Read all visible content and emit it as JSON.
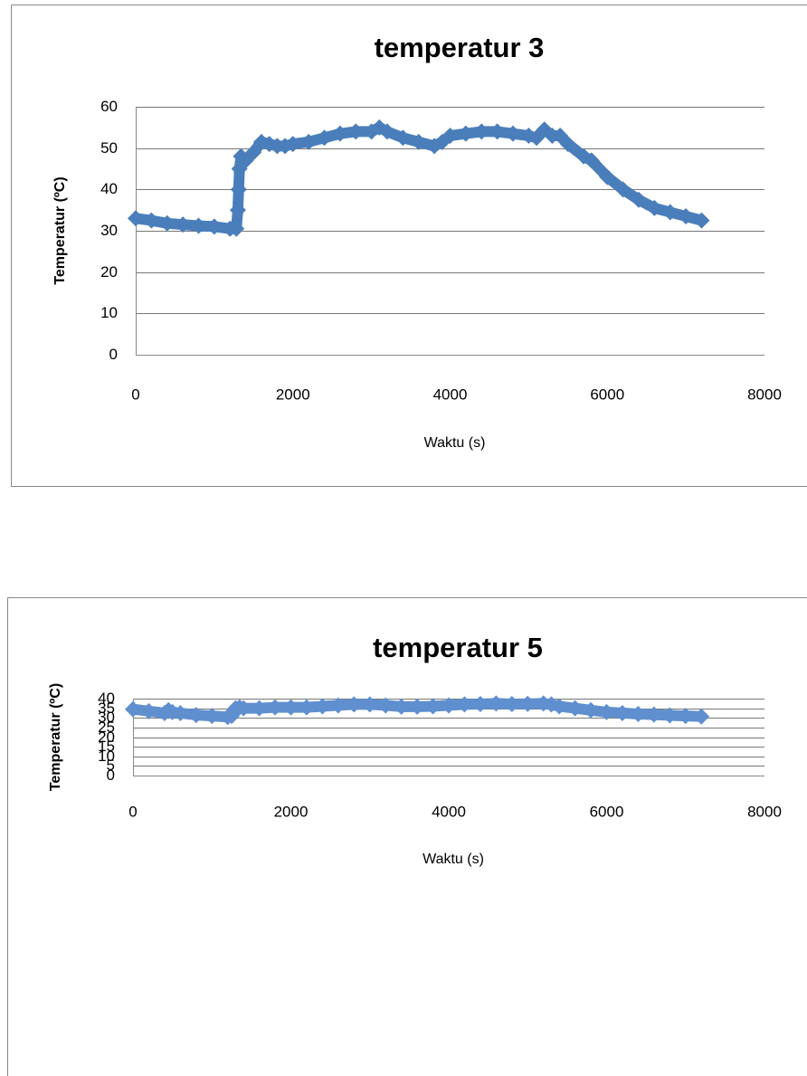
{
  "chart_data": [
    {
      "type": "scatter",
      "title": "temperatur 3",
      "xlabel": "Waktu (s)",
      "ylabel": "Temperatur (ºC)",
      "color": "#4a7ebb",
      "grid": true,
      "x": [
        0,
        200,
        400,
        600,
        800,
        1000,
        1200,
        1280,
        1300,
        1310,
        1320,
        1340,
        1400,
        1500,
        1600,
        1700,
        1800,
        1900,
        2000,
        2200,
        2400,
        2600,
        2800,
        3000,
        3100,
        3200,
        3400,
        3600,
        3800,
        3900,
        4000,
        4200,
        4400,
        4600,
        4800,
        5000,
        5100,
        5200,
        5300,
        5400,
        5500,
        5700,
        5800,
        6000,
        6200,
        6400,
        6600,
        6800,
        7000,
        7200
      ],
      "values": [
        33,
        32.5,
        31.8,
        31.5,
        31.2,
        31,
        30.5,
        30.5,
        35,
        40,
        45,
        48,
        47,
        49,
        51.5,
        51,
        50.5,
        50.5,
        51,
        51.5,
        52.5,
        53.5,
        54,
        54,
        55,
        54,
        52.5,
        51.5,
        50.5,
        51.5,
        53,
        53.5,
        54,
        54,
        53.5,
        53,
        52.5,
        54.5,
        53,
        53,
        51,
        48,
        47,
        43,
        40,
        37.5,
        35.5,
        34.5,
        33.5,
        32.5
      ],
      "xlim": [
        0,
        8000
      ],
      "xticks": [
        0,
        2000,
        4000,
        6000,
        8000
      ],
      "ylim": [
        0,
        60
      ],
      "yticks": [
        0,
        10,
        20,
        30,
        40,
        50,
        60
      ]
    },
    {
      "type": "scatter",
      "title": "temperatur 5",
      "xlabel": "Waktu (s)",
      "ylabel": "Temperatur (ºC)",
      "color": "#5f8fcf",
      "grid": true,
      "x": [
        0,
        200,
        400,
        450,
        500,
        600,
        800,
        1000,
        1200,
        1250,
        1300,
        1350,
        1400,
        1600,
        1800,
        2000,
        2200,
        2400,
        2600,
        2800,
        3000,
        3200,
        3400,
        3600,
        3800,
        4000,
        4200,
        4400,
        4600,
        4800,
        5000,
        5200,
        5300,
        5400,
        5600,
        5800,
        6000,
        6200,
        6400,
        6600,
        6800,
        7000,
        7200
      ],
      "values": [
        34.5,
        33.5,
        32.5,
        34,
        33,
        32.5,
        31.5,
        31,
        30.5,
        31,
        35,
        35.5,
        35,
        35,
        35.5,
        35.5,
        35.5,
        36,
        36.5,
        37,
        37,
        36.5,
        35.8,
        35.8,
        36,
        36.5,
        37,
        37.2,
        37.5,
        37.2,
        37.3,
        37.5,
        37,
        36,
        35,
        34,
        33,
        32.5,
        32,
        31.7,
        31.3,
        31,
        30.7
      ],
      "xlim": [
        0,
        8000
      ],
      "xticks": [
        0,
        2000,
        4000,
        6000,
        8000
      ],
      "ylim": [
        0,
        40
      ],
      "yticks": [
        0,
        5,
        10,
        15,
        20,
        25,
        30,
        35,
        40
      ]
    }
  ]
}
